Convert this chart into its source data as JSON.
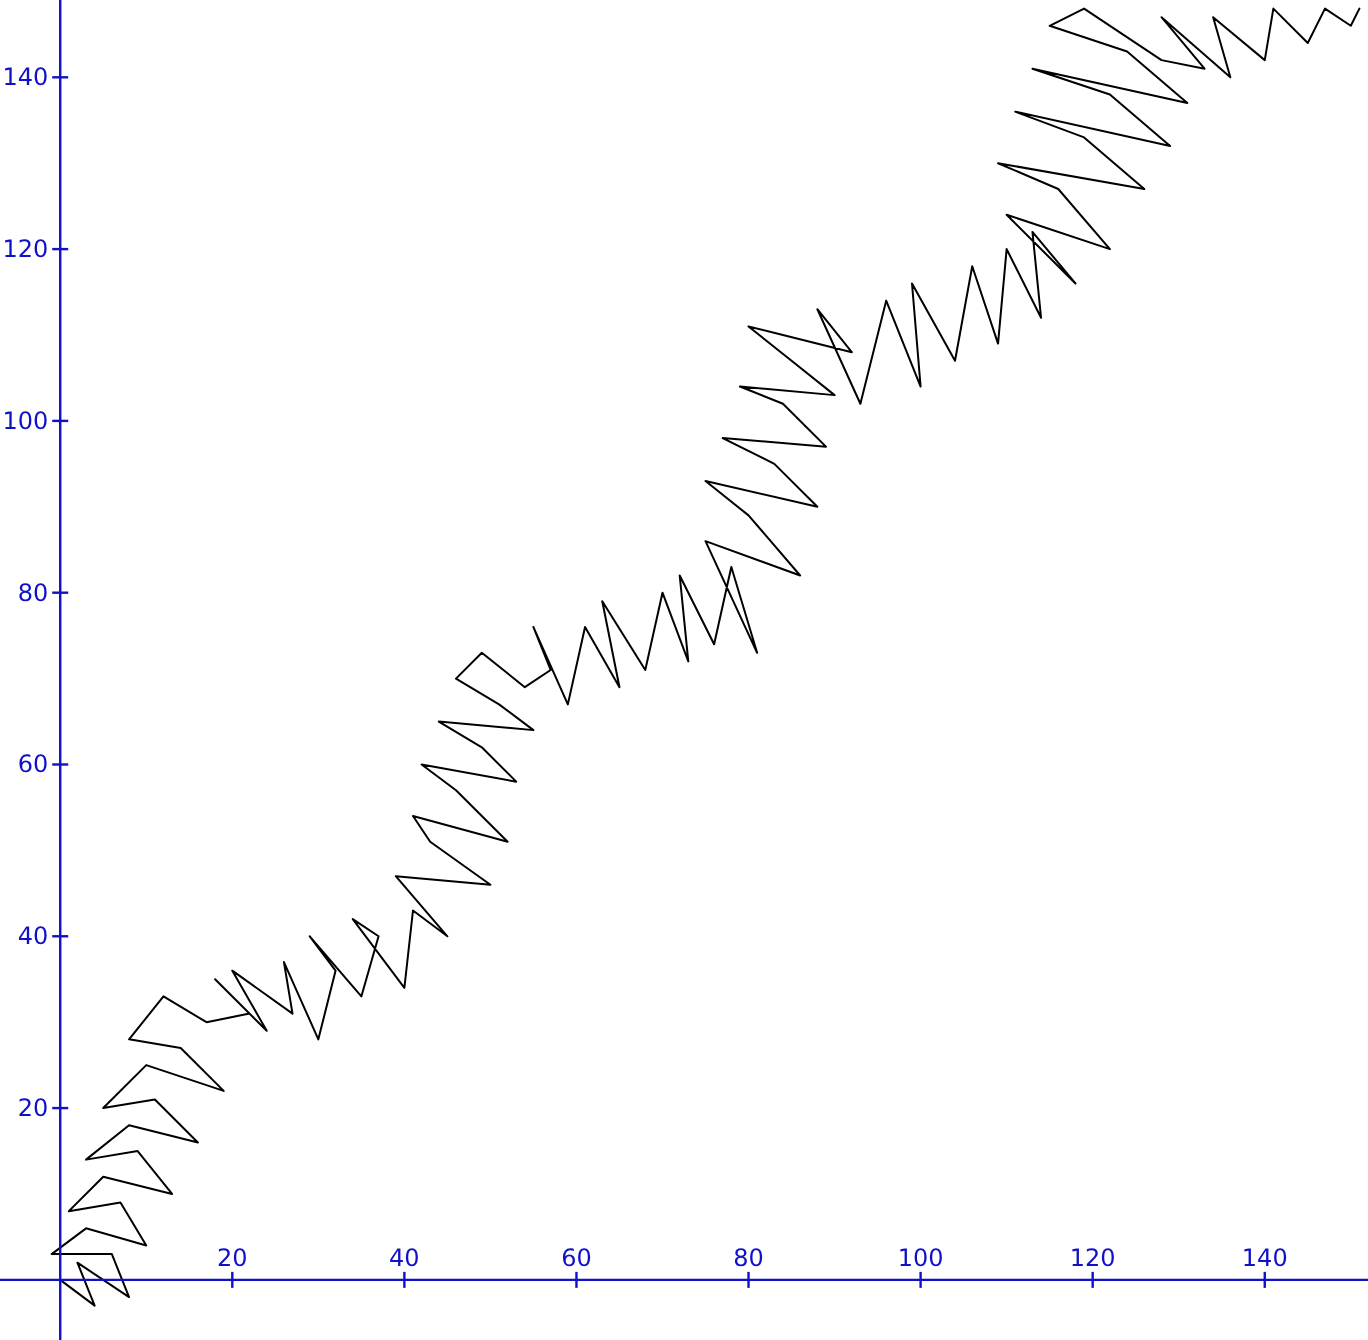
{
  "chart_data": {
    "type": "line",
    "xlim": [
      -7,
      152
    ],
    "ylim": [
      -7,
      149
    ],
    "xticks": [
      20,
      40,
      60,
      80,
      100,
      120,
      140
    ],
    "yticks": [
      20,
      40,
      60,
      80,
      100,
      120,
      140
    ],
    "series": [
      {
        "color": "#000000",
        "x": [
          0,
          4,
          2,
          8,
          6,
          -1,
          3,
          10,
          7,
          1,
          5,
          13,
          9,
          3,
          8,
          16,
          11,
          5,
          10,
          19,
          14,
          8,
          12,
          17,
          22,
          18,
          24,
          20,
          27,
          26,
          30,
          32,
          29,
          35,
          37,
          34,
          40,
          41,
          45,
          39,
          50,
          43,
          41,
          52,
          46,
          42,
          53,
          49,
          44,
          55,
          51,
          46,
          49,
          54,
          57,
          55,
          59,
          61,
          65,
          63,
          68,
          70,
          73,
          72,
          76,
          78,
          81,
          75,
          86,
          80,
          75,
          88,
          83,
          77,
          89,
          84,
          79,
          90,
          85,
          80,
          84,
          92,
          88,
          93,
          96,
          100,
          99,
          104,
          106,
          109,
          110,
          114,
          113,
          118,
          110,
          122,
          116,
          109,
          126,
          119,
          111,
          129,
          122,
          113,
          131,
          124,
          115,
          119,
          128,
          133,
          128,
          136,
          134,
          140,
          141,
          145,
          147,
          150,
          151
        ],
        "values": [
          0,
          -3,
          2,
          -2,
          3,
          3,
          6,
          4,
          9,
          8,
          12,
          10,
          15,
          14,
          18,
          16,
          21,
          20,
          25,
          22,
          27,
          28,
          33,
          30,
          31,
          35,
          29,
          36,
          31,
          37,
          28,
          36,
          40,
          33,
          40,
          42,
          34,
          43,
          40,
          47,
          46,
          51,
          54,
          51,
          57,
          60,
          58,
          62,
          65,
          64,
          67,
          70,
          73,
          69,
          71,
          76,
          67,
          76,
          69,
          79,
          71,
          80,
          72,
          82,
          74,
          83,
          73,
          86,
          82,
          89,
          93,
          90,
          95,
          98,
          97,
          102,
          104,
          103,
          107,
          111,
          110,
          108,
          113,
          102,
          114,
          104,
          116,
          107,
          118,
          109,
          120,
          112,
          122,
          116,
          124,
          120,
          127,
          130,
          127,
          133,
          136,
          132,
          138,
          141,
          137,
          143,
          146,
          148,
          142,
          141,
          147,
          140,
          147,
          142,
          148,
          144,
          148,
          146,
          148
        ]
      }
    ]
  }
}
